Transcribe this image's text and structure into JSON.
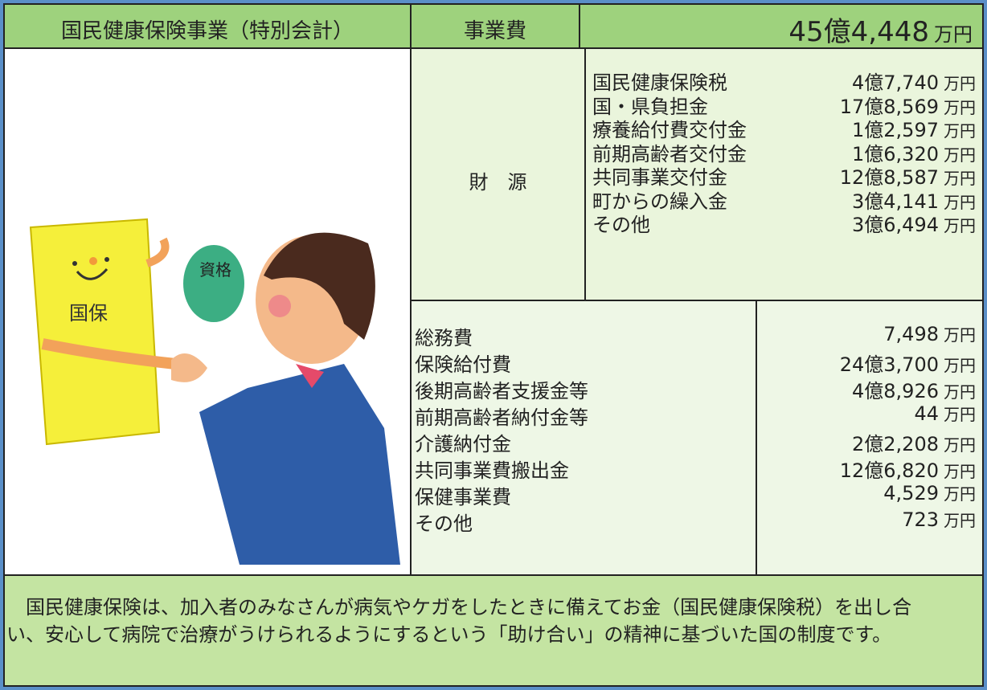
{
  "header": {
    "title": "国民健康保険事業（特別会計）",
    "cost_label": "事業費",
    "total": "45億4,448",
    "unit": "万円"
  },
  "illustration": {
    "card_text": "国保",
    "bubble_text": "資格"
  },
  "revenue": {
    "label": "財　源",
    "rows": [
      [
        "国民健康保険税",
        "4億7,740",
        "万円"
      ],
      [
        "国・県負担金",
        "17億8,569",
        "万円"
      ],
      [
        "療養給付費交付金",
        "1億2,597",
        "万円"
      ],
      [
        "前期高齢者交付金",
        "1億6,320",
        "万円"
      ],
      [
        "共同事業交付金",
        "12億8,587",
        "万円"
      ],
      [
        "町からの繰入金",
        "3億4,141",
        "万円"
      ],
      [
        "その他",
        "3億6,494",
        "万円"
      ]
    ]
  },
  "expenditure": {
    "rows": [
      [
        "総務費",
        "7,498",
        "万円"
      ],
      [
        "保険給付費",
        "24億3,700",
        "万円"
      ],
      [
        "後期高齢者支援金等",
        "4億8,926",
        "万円"
      ],
      [
        "前期高齢者納付金等",
        "44",
        "万円"
      ],
      [
        "介護納付金",
        "2億2,208",
        "万円"
      ],
      [
        "共同事業費搬出金",
        "12億6,820",
        "万円"
      ],
      [
        "保健事業費",
        "4,529",
        "万円"
      ],
      [
        "その他",
        "723",
        "万円"
      ]
    ]
  },
  "footer": {
    "text": "　国民健康保険は、加入者のみなさんが病気やケガをしたときに備えてお金（国民健康保険税）を出し合い、安心して病院で治療がうけられるようにするという「助け合い」の精神に基づいた国の制度です。"
  }
}
